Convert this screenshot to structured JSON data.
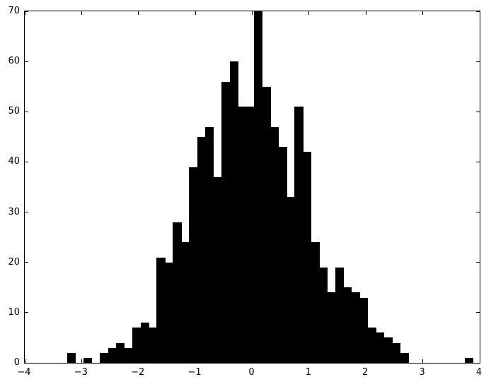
{
  "chart_data": {
    "type": "bar",
    "subtype": "histogram",
    "title": "",
    "xlabel": "",
    "ylabel": "",
    "xlim": [
      -4,
      4
    ],
    "ylim": [
      0,
      70
    ],
    "x_tick_values": [
      -4,
      -3,
      -2,
      -1,
      0,
      1,
      2,
      3,
      4
    ],
    "x_tick_labels": [
      "−4",
      "−3",
      "−2",
      "−1",
      "0",
      "1",
      "2",
      "3",
      "4"
    ],
    "y_tick_values": [
      0,
      10,
      20,
      30,
      40,
      50,
      60,
      70
    ],
    "y_tick_labels": [
      "0",
      "10",
      "20",
      "30",
      "40",
      "50",
      "60",
      "70"
    ],
    "bin_start": -3.25,
    "bin_width": 0.1427,
    "counts": [
      2,
      0,
      1,
      0,
      2,
      3,
      4,
      3,
      7,
      8,
      7,
      21,
      20,
      28,
      24,
      39,
      45,
      47,
      37,
      56,
      60,
      51,
      51,
      70,
      55,
      47,
      43,
      33,
      51,
      42,
      24,
      19,
      14,
      19,
      15,
      14,
      13,
      7,
      6,
      5,
      4,
      2,
      0,
      0,
      0,
      0,
      0,
      0,
      0,
      1
    ],
    "bar_color": "#000000",
    "axes_color": "#000000",
    "background_color": "#ffffff",
    "grid": false,
    "legend": null,
    "tick_direction": "in"
  }
}
